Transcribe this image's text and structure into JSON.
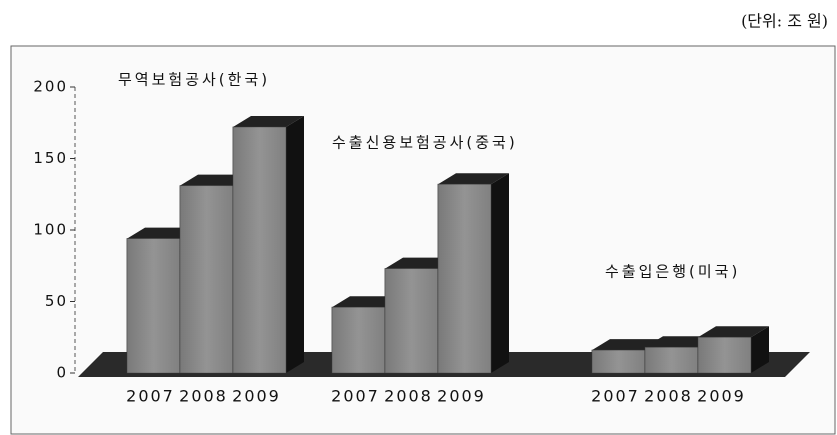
{
  "chart_data": {
    "type": "bar3d",
    "unit": "(단위: 조 원)",
    "groups": [
      {
        "name": "무역보험공사(한국)",
        "categories": [
          "2007",
          "2008",
          "2009"
        ],
        "values": [
          94,
          131,
          172
        ]
      },
      {
        "name": "수출신용보험공사(중국)",
        "categories": [
          "2007",
          "2008",
          "2009"
        ],
        "values": [
          46,
          73,
          132
        ]
      },
      {
        "name": "수출입은행(미국)",
        "categories": [
          "2007",
          "2008",
          "2009"
        ],
        "values": [
          16,
          18,
          25
        ]
      }
    ],
    "color": "#8a8a8a",
    "ylim": [
      0,
      200
    ],
    "yticks": [
      0,
      50,
      100,
      150,
      200
    ]
  }
}
